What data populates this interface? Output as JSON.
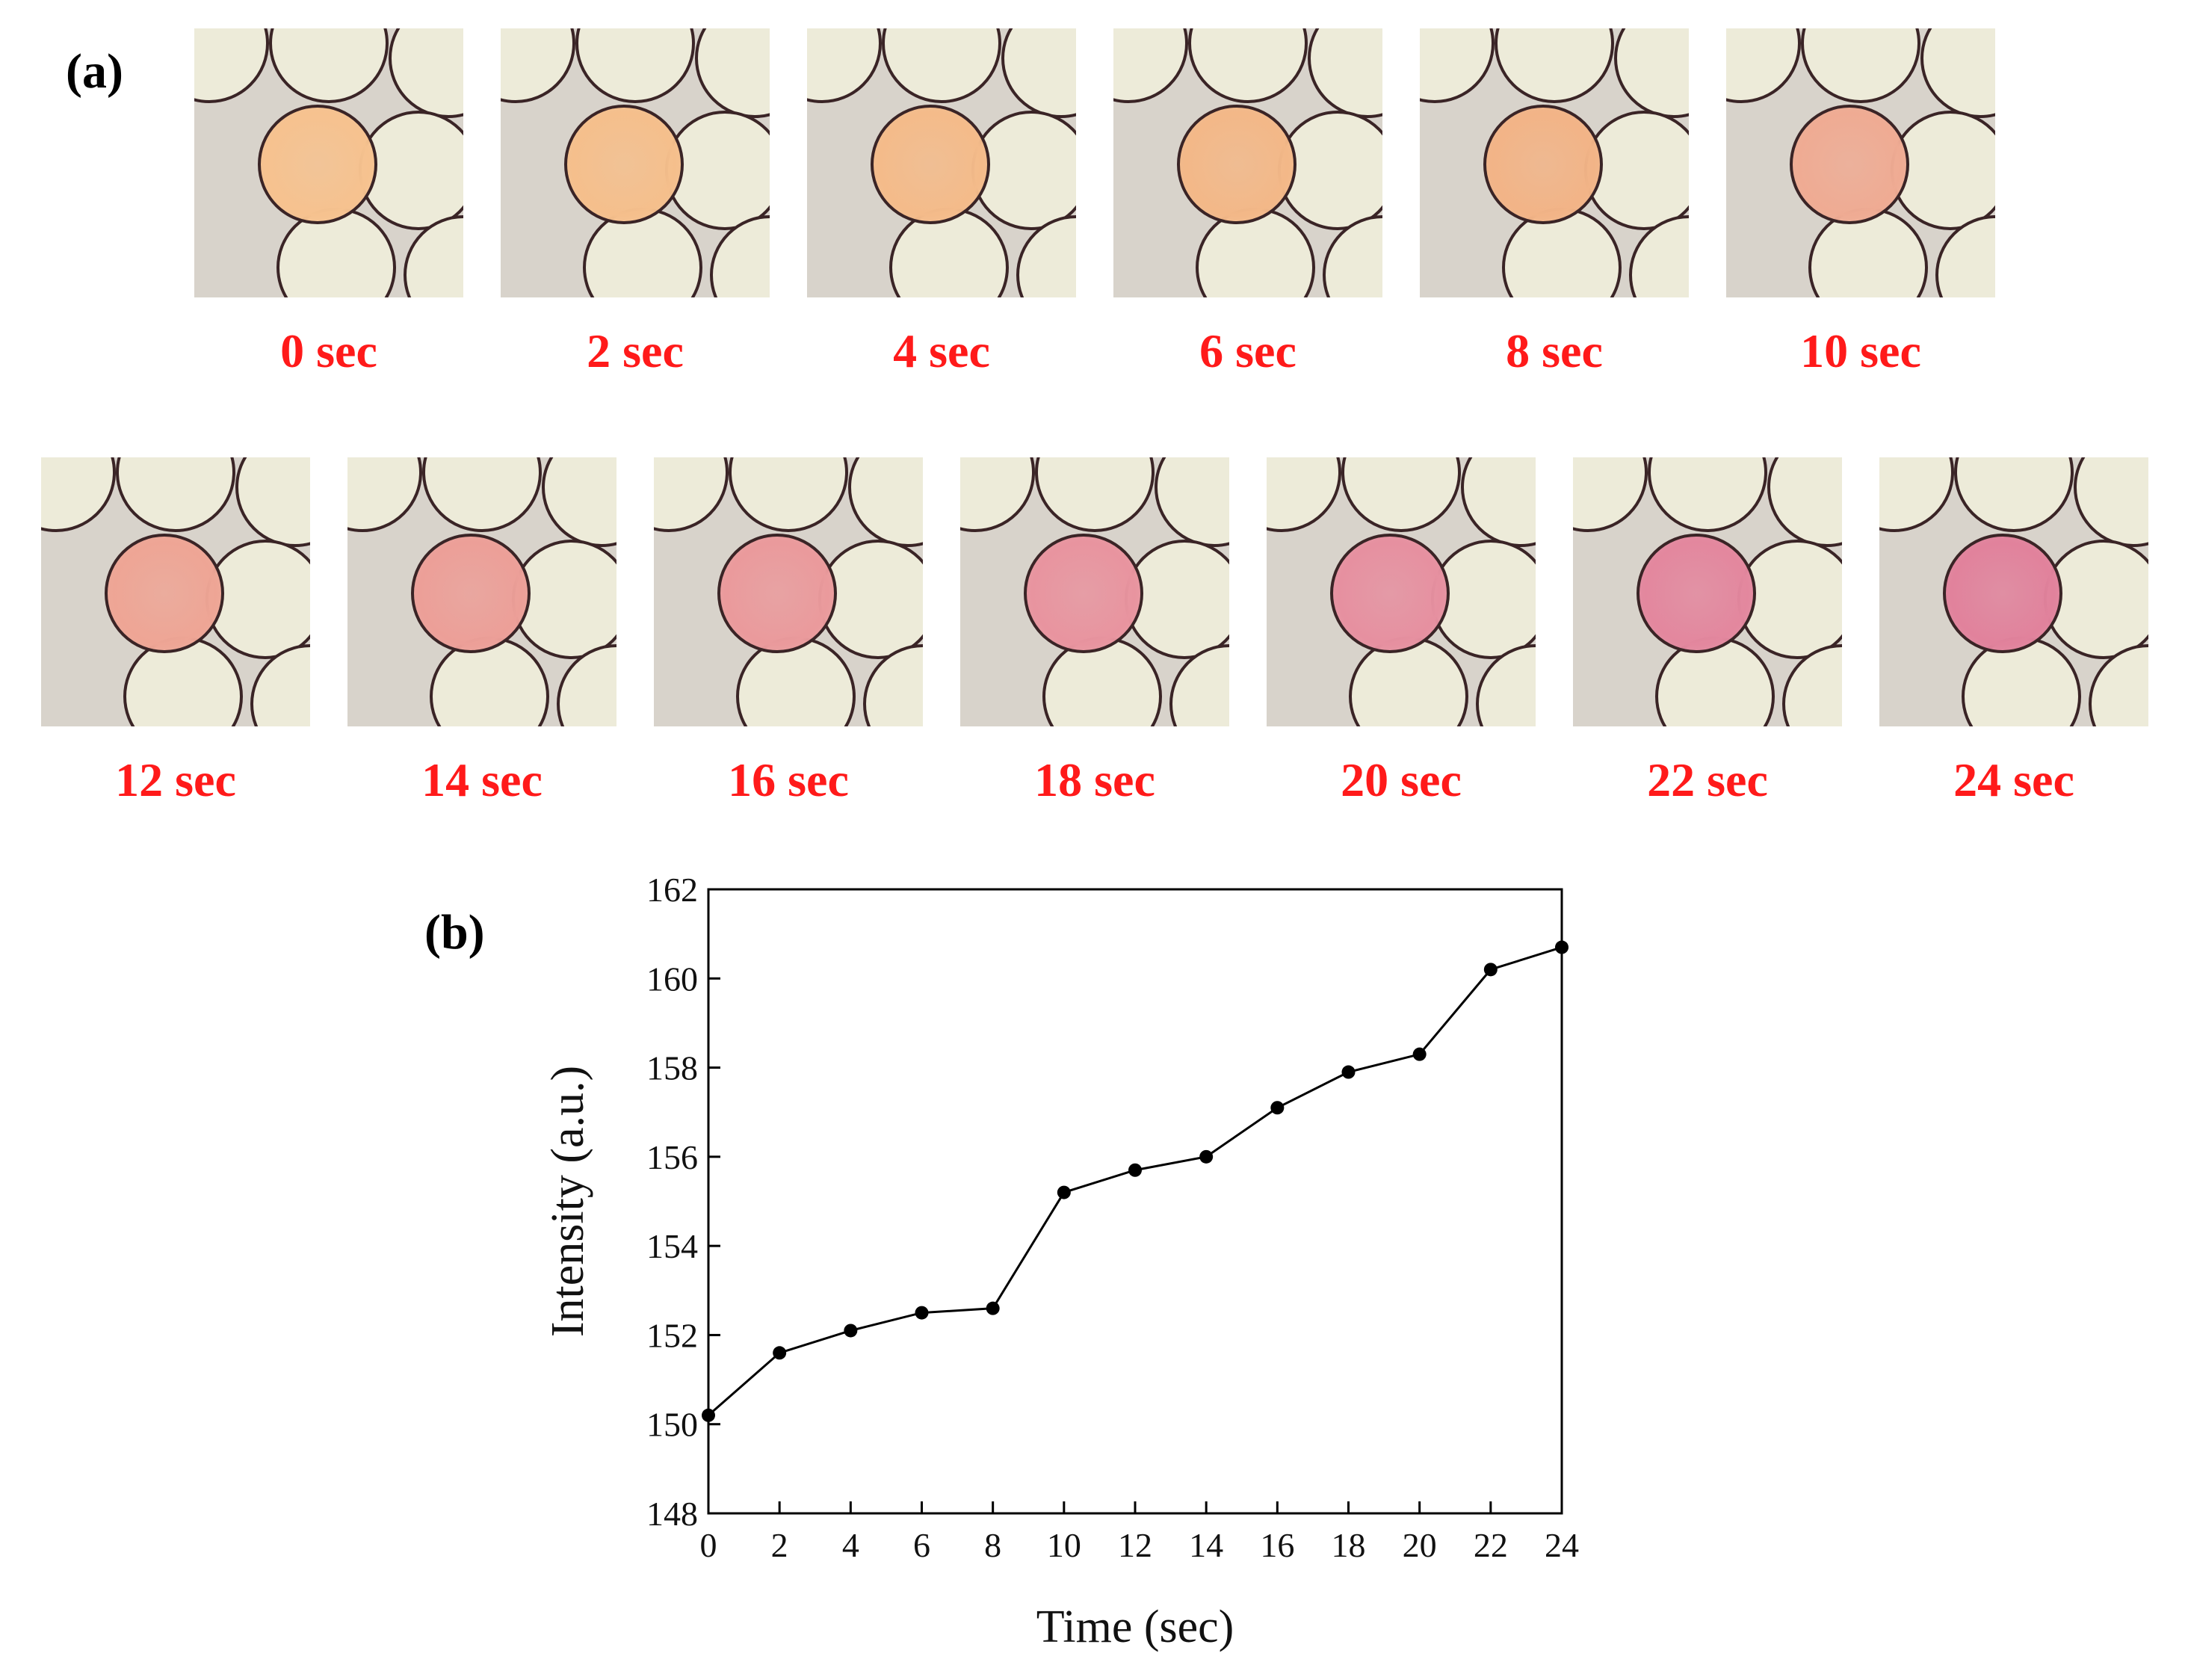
{
  "panel_a": {
    "label": "(a)",
    "frames": [
      {
        "time_label": "0 sec",
        "droplet_color": "#f6c28f"
      },
      {
        "time_label": "2 sec",
        "droplet_color": "#f5bf8c"
      },
      {
        "time_label": "4 sec",
        "droplet_color": "#f4bb8a"
      },
      {
        "time_label": "6 sec",
        "droplet_color": "#f3b888"
      },
      {
        "time_label": "8 sec",
        "droplet_color": "#f2b487"
      },
      {
        "time_label": "10 sec",
        "droplet_color": "#efab93"
      },
      {
        "time_label": "12 sec",
        "droplet_color": "#eea595"
      },
      {
        "time_label": "14 sec",
        "droplet_color": "#ec9f98"
      },
      {
        "time_label": "16 sec",
        "droplet_color": "#ea9a9c"
      },
      {
        "time_label": "18 sec",
        "droplet_color": "#e8949f"
      },
      {
        "time_label": "20 sec",
        "droplet_color": "#e690a0"
      },
      {
        "time_label": "22 sec",
        "droplet_color": "#e3879e"
      },
      {
        "time_label": "24 sec",
        "droplet_color": "#e1829c"
      }
    ],
    "caption_color": "#ff1a1a",
    "neighbor_color": "#edebd9",
    "background_color": "#d8d3cb",
    "outline_color": "#3a2426"
  },
  "panel_b": {
    "label": "(b)"
  },
  "chart_data": {
    "type": "line",
    "title": "",
    "xlabel": "Time (sec)",
    "ylabel": "Intensity (a.u.)",
    "x": [
      0,
      2,
      4,
      6,
      8,
      10,
      12,
      14,
      16,
      18,
      20,
      22,
      24
    ],
    "y": [
      150.2,
      151.6,
      152.1,
      152.5,
      152.6,
      155.2,
      155.7,
      156.0,
      157.1,
      157.9,
      158.3,
      160.2,
      160.7
    ],
    "xlim": [
      0,
      24
    ],
    "ylim": [
      148,
      162
    ],
    "xticks": [
      "0",
      "2",
      "4",
      "6",
      "8",
      "10",
      "12",
      "14",
      "16",
      "18",
      "20",
      "22",
      "24"
    ],
    "yticks": [
      "148",
      "150",
      "152",
      "154",
      "156",
      "158",
      "160",
      "162"
    ],
    "grid": false,
    "legend": "none",
    "marker": "filled-circle",
    "line_color": "#000000"
  }
}
